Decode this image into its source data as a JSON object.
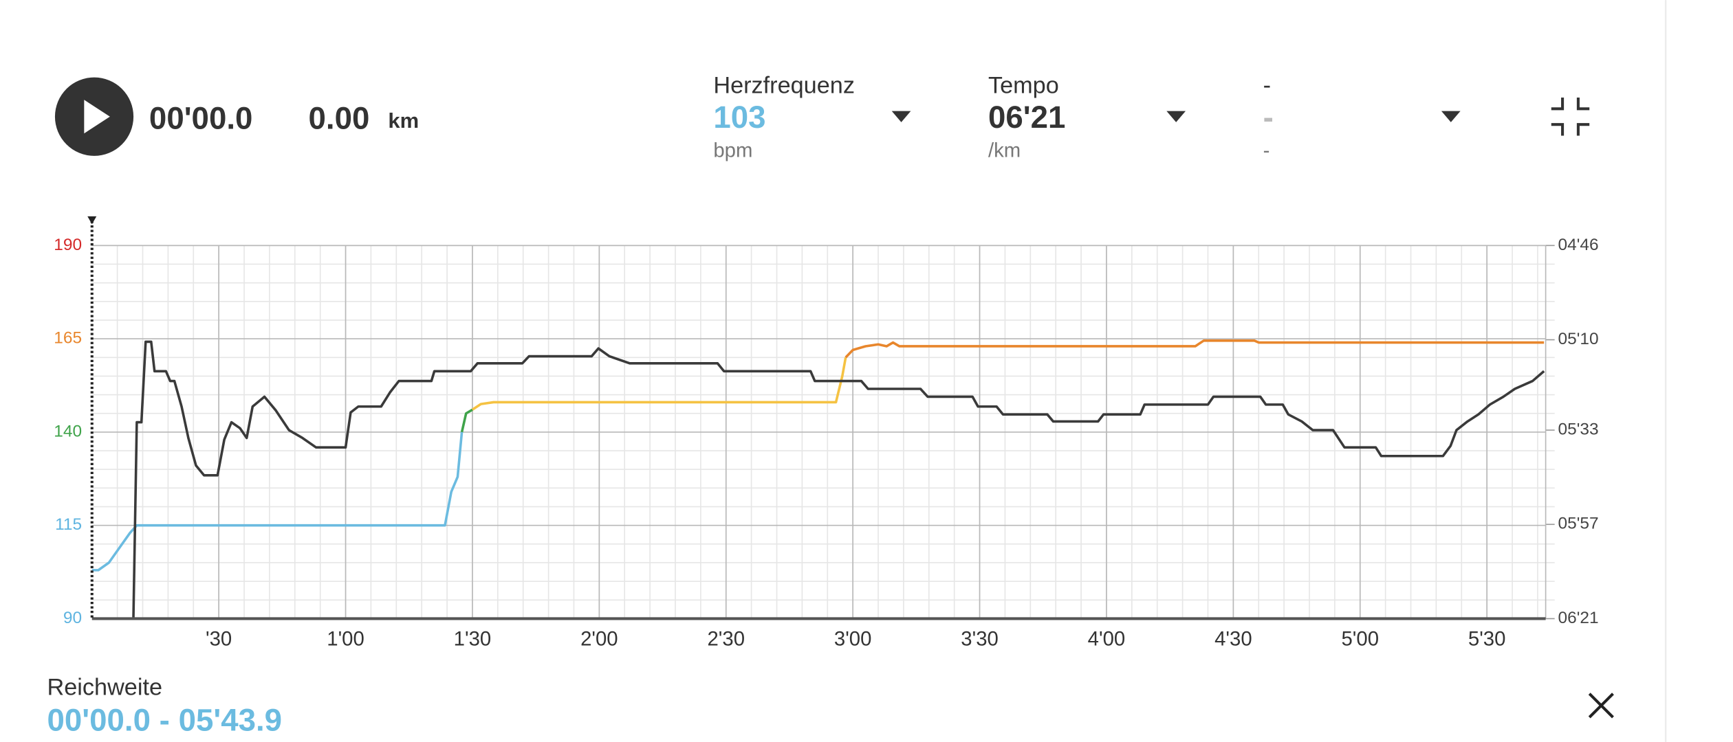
{
  "player": {
    "time": "00'00.0",
    "distance": "0.00",
    "distance_unit": "km"
  },
  "metrics": [
    {
      "label": "Herzfrequenz",
      "value": "103",
      "unit": "bpm"
    },
    {
      "label": "Tempo",
      "value": "06'21",
      "unit": "/km"
    },
    {
      "label": "-",
      "value": "-",
      "unit": "-"
    }
  ],
  "range": {
    "label": "Reichweite",
    "value": "00'00.0 - 05'43.9"
  },
  "chart_data": {
    "type": "line",
    "xlim": [
      0,
      343.9
    ],
    "xticks": [
      {
        "value": 30,
        "label": "'30"
      },
      {
        "value": 60,
        "label": "1'00"
      },
      {
        "value": 90,
        "label": "1'30"
      },
      {
        "value": 120,
        "label": "2'00"
      },
      {
        "value": 150,
        "label": "2'30"
      },
      {
        "value": 180,
        "label": "3'00"
      },
      {
        "value": 210,
        "label": "3'30"
      },
      {
        "value": 240,
        "label": "4'00"
      },
      {
        "value": 270,
        "label": "4'30"
      },
      {
        "value": 300,
        "label": "5'00"
      },
      {
        "value": 330,
        "label": "5'30"
      }
    ],
    "ylim": [
      90,
      190
    ],
    "yticks": [
      90,
      115,
      140,
      165,
      190
    ],
    "ytick_colors": [
      "#5fb4e0",
      "#5fb4e0",
      "#3fa34a",
      "#e8862c",
      "#d42a2a"
    ],
    "y2lim": [
      381,
      286
    ],
    "y2ticks": [
      {
        "value": 286,
        "label": "04'46"
      },
      {
        "value": 310,
        "label": "05'10"
      },
      {
        "value": 333,
        "label": "05'33"
      },
      {
        "value": 357,
        "label": "05'57"
      },
      {
        "value": 381,
        "label": "06'21"
      }
    ],
    "grid": true,
    "series": [
      {
        "color": "#6bbbe0",
        "axis": "y",
        "x": [
          0,
          1.5,
          4,
          6.5,
          9,
          10.6,
          83.5,
          85,
          86.5,
          87.5
        ],
        "values": [
          103,
          103,
          105,
          109,
          113,
          115,
          115,
          124,
          128,
          140
        ]
      },
      {
        "color": "#3fa34a",
        "axis": "y",
        "x": [
          87.5,
          88.5,
          90
        ],
        "values": [
          140,
          145,
          146
        ]
      },
      {
        "color": "#f5c242",
        "axis": "y",
        "x": [
          90,
          92,
          95,
          176,
          177.5,
          178.3
        ],
        "values": [
          146,
          147.5,
          148,
          148,
          155,
          160
        ]
      },
      {
        "color": "#e8862c",
        "axis": "y",
        "x": [
          178.3,
          180,
          183,
          186,
          188,
          189.5,
          191,
          261,
          263,
          275,
          276,
          343.5
        ],
        "values": [
          160,
          162,
          163,
          163.5,
          163,
          164,
          163,
          163,
          164.5,
          164.5,
          164,
          164
        ]
      },
      {
        "color": "#3a3a3a",
        "axis": "y2",
        "x": [
          9.8,
          10.6,
          11.7,
          12.7,
          14,
          14.8,
          17.5,
          18.5,
          19.5,
          21.2,
          22.8,
          24.6,
          26.5,
          29.7,
          31.3,
          33,
          35,
          36.6,
          38,
          40.8,
          43.5,
          46.6,
          49.8,
          53,
          60,
          61.2,
          63,
          68.4,
          70.5,
          72.6,
          80.3,
          81,
          89.6,
          91.2,
          101.8,
          103.4,
          118.2,
          119.8,
          122.4,
          127.2,
          148,
          149.5,
          170,
          171,
          182,
          183.6,
          196,
          197.7,
          208.3,
          209.6,
          214,
          215.5,
          226,
          227.4,
          238,
          239.3,
          248,
          249,
          264,
          265.3,
          276.4,
          277.7,
          281.7,
          283,
          286.2,
          288.8,
          293.6,
          296.3,
          303.7,
          305,
          319.6,
          321.4,
          322.8,
          325.4,
          328,
          330.7,
          333.9,
          336.6,
          340.8,
          343.5
        ],
        "values": [
          381,
          331,
          331,
          310.5,
          310.5,
          318,
          318,
          320.5,
          320.5,
          327,
          335,
          342,
          344.5,
          344.5,
          335.4,
          331,
          332.5,
          335,
          327,
          324.5,
          328,
          333,
          335,
          337.4,
          337.4,
          328.5,
          327,
          327,
          323.4,
          320.5,
          320.5,
          318,
          318,
          316,
          316,
          314.2,
          314.2,
          312.2,
          314.2,
          316,
          316,
          318,
          318,
          320.5,
          320.5,
          322.5,
          322.5,
          324.5,
          324.5,
          327,
          327,
          329,
          329,
          330.8,
          330.8,
          329,
          329,
          326.5,
          326.5,
          324.5,
          324.5,
          326.5,
          326.5,
          329,
          330.8,
          333,
          333,
          337.4,
          337.4,
          339.6,
          339.6,
          337,
          333,
          330.8,
          329,
          326.5,
          324.5,
          322.5,
          320.5,
          318
        ]
      }
    ]
  }
}
